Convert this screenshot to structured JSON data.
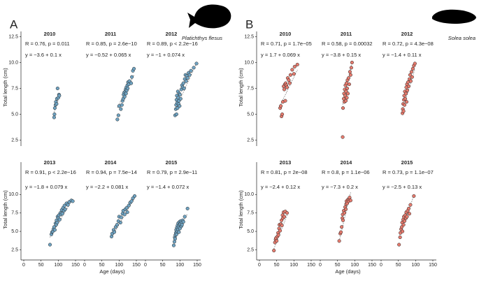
{
  "chart_data": [
    {
      "type": "scatter",
      "panel_label": "A",
      "species": "Platichthys flesus",
      "color": "#6fa3c2",
      "ylabel": "Total length (cm)",
      "xlabel": "Age (days)",
      "xlim": [
        0,
        150
      ],
      "xticks": [
        0,
        50,
        100,
        150
      ],
      "rows": [
        {
          "ylim": [
            2.2,
            13
          ],
          "yticks": [
            {
              "value": 2.5,
              "label": "2.5"
            },
            {
              "value": 5,
              "label": "5.0"
            },
            {
              "value": 7.5,
              "label": "7.5"
            },
            {
              "value": 10,
              "label": "10.0"
            },
            {
              "value": 12.5,
              "label": "12.5"
            }
          ],
          "facets": [
            {
              "title": "2010",
              "annotation": "R = 0.76, p = 0.011",
              "equation": "y = −3.6 + 0.1 x",
              "intercept": -3.6,
              "slope": 0.1,
              "x": [
                88,
                89,
                90,
                92,
                93,
                95,
                96,
                98,
                100,
                102,
                103
              ],
              "y": [
                4.7,
                5.0,
                5.6,
                5.9,
                6.2,
                6.0,
                6.5,
                7.5,
                6.6,
                6.9,
                6.8
              ]
            },
            {
              "title": "2011",
              "annotation": "R = 0.85, p = 2.6e−10",
              "equation": "y = −0.52 + 0.065 x",
              "intercept": -0.52,
              "slope": 0.065,
              "x": [
                95,
                98,
                100,
                105,
                108,
                110,
                112,
                113,
                115,
                116,
                118,
                119,
                120,
                121,
                122,
                124,
                125,
                126,
                128,
                130,
                135,
                137,
                140,
                143
              ],
              "y": [
                4.5,
                4.9,
                5.8,
                5.5,
                5.9,
                6.3,
                6.5,
                6.9,
                7.1,
                6.7,
                7.2,
                7.4,
                7.0,
                7.6,
                7.3,
                7.8,
                7.5,
                8.1,
                7.9,
                8.2,
                8.0,
                8.6,
                9.2,
                9.4
              ]
            },
            {
              "title": "2012",
              "annotation": "R = 0.89, p < 2.2e−16",
              "equation": "y = −1 + 0.074 x",
              "intercept": -1,
              "slope": 0.074,
              "x": [
                86,
                88,
                89,
                90,
                90,
                91,
                92,
                93,
                94,
                95,
                96,
                97,
                98,
                99,
                100,
                102,
                104,
                106,
                108,
                110,
                112,
                114,
                116,
                118,
                120,
                122,
                125,
                128,
                132,
                140,
                148
              ],
              "y": [
                4.9,
                5.5,
                5.9,
                6.4,
                5.0,
                6.8,
                6.1,
                5.6,
                7.2,
                6.6,
                6.0,
                6.3,
                7.0,
                5.8,
                6.9,
                6.5,
                7.4,
                7.8,
                7.6,
                8.0,
                7.5,
                8.4,
                8.8,
                8.2,
                8.7,
                8.5,
                9.0,
                8.8,
                9.2,
                9.5,
                9.9
              ]
            }
          ]
        },
        {
          "ylim": [
            1.5,
            14.4
          ],
          "yticks": [
            {
              "value": 2.5,
              "label": "2.5"
            },
            {
              "value": 5,
              "label": "5.0"
            },
            {
              "value": 7.5,
              "label": "7.5"
            },
            {
              "value": 10,
              "label": "10.0"
            }
          ],
          "facets": [
            {
              "title": "2013",
              "annotation": "R = 0.91, p < 2.2e−16",
              "equation": "y = −1.8 + 0.079 x",
              "intercept": -1.8,
              "slope": 0.079,
              "x": [
                76,
                80,
                82,
                84,
                86,
                88,
                90,
                92,
                94,
                95,
                97,
                98,
                100,
                102,
                104,
                106,
                108,
                110,
                112,
                114,
                116,
                118,
                120,
                124,
                128,
                132,
                138,
                142
              ],
              "y": [
                3.2,
                4.6,
                4.9,
                5.0,
                5.3,
                5.6,
                5.2,
                6.1,
                5.9,
                6.5,
                6.2,
                7.0,
                6.8,
                7.2,
                6.6,
                7.5,
                7.3,
                7.9,
                7.4,
                8.2,
                7.8,
                8.5,
                8.0,
                8.8,
                8.6,
                9.0,
                9.2,
                9.1
              ]
            },
            {
              "title": "2014",
              "annotation": "R = 0.94, p = 7.5e−14",
              "equation": "y = −2.2 + 0.081 x",
              "intercept": -2.2,
              "slope": 0.081,
              "x": [
                78,
                80,
                84,
                86,
                90,
                94,
                98,
                100,
                104,
                106,
                110,
                112,
                116,
                118,
                122,
                124,
                128,
                132,
                136,
                140,
                145
              ],
              "y": [
                4.3,
                4.7,
                5.2,
                4.9,
                5.6,
                5.9,
                6.4,
                7.0,
                6.2,
                6.9,
                7.4,
                7.8,
                7.3,
                8.0,
                8.2,
                7.6,
                8.5,
                8.9,
                9.1,
                9.5,
                9.8
              ]
            },
            {
              "title": "2015",
              "annotation": "R = 0.79, p = 2.9e−11",
              "equation": "y = −1.4 + 0.072 x",
              "intercept": -1.4,
              "slope": 0.072,
              "x": [
                82,
                84,
                85,
                86,
                87,
                88,
                89,
                90,
                91,
                92,
                93,
                94,
                95,
                96,
                97,
                98,
                99,
                100,
                101,
                102,
                104,
                105,
                106,
                108,
                110,
                114,
                122
              ],
              "y": [
                3.1,
                3.6,
                4.2,
                4.0,
                4.5,
                4.8,
                5.2,
                4.6,
                5.5,
                5.0,
                5.8,
                5.3,
                6.1,
                5.6,
                4.9,
                5.9,
                6.3,
                5.4,
                6.0,
                6.4,
                5.7,
                6.2,
                5.9,
                6.5,
                6.3,
                7.0,
                8.1
              ]
            }
          ]
        }
      ]
    },
    {
      "type": "scatter",
      "panel_label": "B",
      "species": "Solea solea",
      "color": "#e57b6e",
      "ylabel": "Total length (cm)",
      "xlabel": "Age (days)",
      "xlim": [
        0,
        150
      ],
      "xticks": [
        0,
        50,
        100,
        150
      ],
      "rows": [
        {
          "ylim": [
            2.2,
            13
          ],
          "yticks": [
            {
              "value": 2.5,
              "label": "2.5"
            },
            {
              "value": 5,
              "label": "5.0"
            },
            {
              "value": 7.5,
              "label": "7.5"
            },
            {
              "value": 10,
              "label": "10.0"
            },
            {
              "value": 12.5,
              "label": "12.5"
            }
          ],
          "facets": [
            {
              "title": "2010",
              "annotation": "R = 0.71, p = 1.7e−05",
              "equation": "y = 1.7 + 0.069 x",
              "intercept": 1.7,
              "slope": 0.069,
              "x": [
                60,
                62,
                64,
                66,
                68,
                70,
                72,
                74,
                75,
                76,
                78,
                80,
                82,
                85,
                88,
                90,
                95,
                100,
                102,
                110
              ],
              "y": [
                5.6,
                5.8,
                4.8,
                5.0,
                6.2,
                7.7,
                7.4,
                7.9,
                6.3,
                8.0,
                7.8,
                7.6,
                8.5,
                8.3,
                8.0,
                8.8,
                9.3,
                8.9,
                9.6,
                9.8
              ]
            },
            {
              "title": "2011",
              "annotation": "R = 0.58, p = 0.00032",
              "equation": "y = −3.8 + 0.15 x",
              "intercept": -3.8,
              "slope": 0.15,
              "x": [
                65,
                66,
                68,
                69,
                70,
                71,
                72,
                73,
                74,
                75,
                76,
                77,
                78,
                79,
                80,
                82,
                84,
                86,
                88,
                90,
                92
              ],
              "y": [
                2.8,
                5.6,
                6.5,
                7.0,
                6.2,
                7.4,
                6.8,
                7.8,
                6.3,
                7.2,
                8.0,
                6.6,
                7.5,
                8.3,
                7.0,
                8.5,
                7.9,
                9.1,
                8.8,
                9.5,
                10.0
              ]
            },
            {
              "title": "2012",
              "annotation": "R = 0.72, p = 4.3e−08",
              "equation": "y = −1.4 + 0.11 x",
              "intercept": -1.4,
              "slope": 0.11,
              "x": [
                62,
                63,
                64,
                65,
                66,
                67,
                68,
                69,
                70,
                72,
                73,
                74,
                75,
                76,
                78,
                80,
                82,
                84,
                86,
                88,
                90,
                92,
                95,
                98
              ],
              "y": [
                5.1,
                5.5,
                6.0,
                5.3,
                6.4,
                6.8,
                5.9,
                7.2,
                6.5,
                7.0,
                7.6,
                6.2,
                7.9,
                7.3,
                8.1,
                7.7,
                8.4,
                8.8,
                8.2,
                9.1,
                8.6,
                9.4,
                9.7,
                9.9
              ]
            }
          ]
        },
        {
          "ylim": [
            1.5,
            14.4
          ],
          "yticks": [
            {
              "value": 2.5,
              "label": "2.5"
            },
            {
              "value": 5,
              "label": "5.0"
            },
            {
              "value": 7.5,
              "label": "7.5"
            },
            {
              "value": 10,
              "label": "10.0"
            }
          ],
          "facets": [
            {
              "title": "2013",
              "annotation": "R = 0.81, p = 2e−08",
              "equation": "y = −2.4 + 0.12 x",
              "intercept": -2.4,
              "slope": 0.12,
              "x": [
                42,
                45,
                47,
                48,
                50,
                52,
                54,
                55,
                57,
                58,
                60,
                62,
                64,
                65,
                67,
                68,
                70,
                72,
                75,
                80
              ],
              "y": [
                2.4,
                3.5,
                3.9,
                4.1,
                3.7,
                4.3,
                4.8,
                4.5,
                5.4,
                5.9,
                5.1,
                6.0,
                6.5,
                5.8,
                7.2,
                6.8,
                7.6,
                7.0,
                7.7,
                7.5
              ]
            },
            {
              "title": "2014",
              "annotation": "R = 0.8, p = 1.1e−06",
              "equation": "y = −7.3 + 0.2 x",
              "intercept": -7.3,
              "slope": 0.2,
              "x": [
                55,
                58,
                60,
                62,
                64,
                65,
                66,
                68,
                70,
                72,
                74,
                75,
                76,
                78,
                80,
                82,
                84,
                85,
                88
              ],
              "y": [
                3.7,
                4.7,
                4.9,
                5.6,
                6.8,
                7.3,
                6.5,
                7.8,
                7.5,
                8.3,
                8.0,
                8.7,
                9.1,
                8.8,
                9.3,
                9.1,
                9.4,
                9.6,
                9.2
              ]
            },
            {
              "title": "2015",
              "annotation": "R = 0.73, p = 1.1e−07",
              "equation": "y = −2.5 + 0.13 x",
              "intercept": -2.5,
              "slope": 0.13,
              "x": [
                52,
                55,
                56,
                58,
                60,
                61,
                62,
                64,
                65,
                66,
                68,
                70,
                72,
                73,
                75,
                77,
                80,
                82,
                85,
                95
              ],
              "y": [
                3.2,
                4.2,
                4.8,
                5.3,
                5.6,
                6.2,
                5.0,
                6.6,
                5.9,
                7.0,
                6.4,
                7.2,
                6.8,
                7.6,
                7.0,
                7.8,
                8.1,
                7.4,
                8.6,
                9.8
              ]
            }
          ]
        }
      ]
    }
  ]
}
